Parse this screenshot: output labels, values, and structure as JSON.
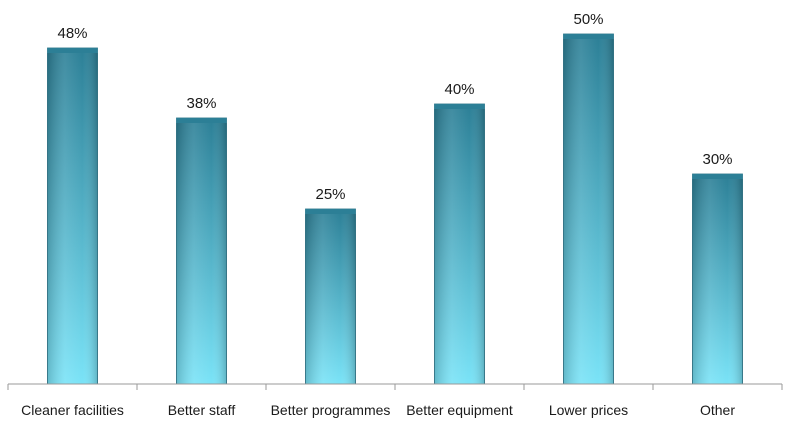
{
  "chart_data": {
    "type": "bar",
    "title": "",
    "xlabel": "",
    "ylabel": "",
    "ylim": [
      0,
      50
    ],
    "grid": false,
    "legend": "none",
    "categories": [
      "Cleaner facilities",
      "Better staff",
      "Better programmes",
      "Better equipment",
      "Lower prices",
      "Other"
    ],
    "values": [
      48,
      38,
      25,
      40,
      50,
      30
    ],
    "value_labels": [
      "48%",
      "38%",
      "25%",
      "40%",
      "50%",
      "30%"
    ],
    "colors": {
      "bar_top": "#2c7f96",
      "bar_bottom": "#7ae3f7",
      "bar_edge": "#1f6b80",
      "axis": "#9a9a9a"
    }
  }
}
